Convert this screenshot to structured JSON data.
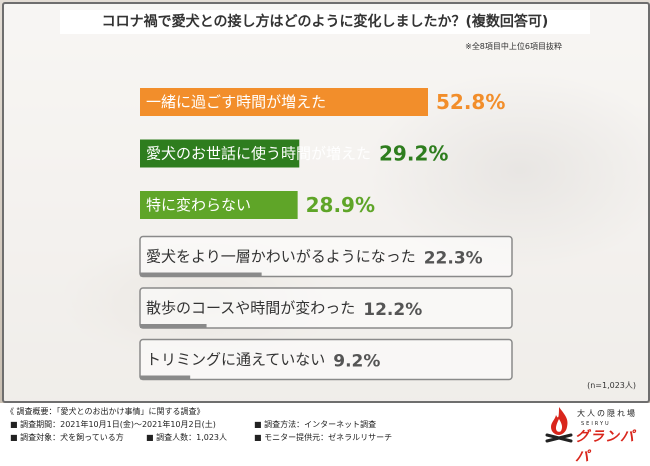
{
  "title": "コロナ禍で愛犬との接し方はどのように変化しましたか？(複数回答可)",
  "note": "※全8項目中上位6項目抜粋",
  "n_label": "(n=1,023人)",
  "colors": {
    "orange": "#f28e2b",
    "dark_green": "#2e7d1e",
    "green": "#5fa528",
    "gray": "#8a8a8a",
    "text_dark": "#333333"
  },
  "chart_data": {
    "type": "bar",
    "orientation": "horizontal",
    "categories": [
      "一緒に過ごす時間が増えた",
      "愛犬のお世話に使う時間が増えた",
      "特に変わらない",
      "愛犬をより一層かわいがるようになった",
      "散歩のコースや時間が変わった",
      "トリミングに通えていない"
    ],
    "values": [
      52.8,
      29.2,
      28.9,
      22.3,
      12.2,
      9.2
    ],
    "value_labels": [
      "52.8%",
      "29.2%",
      "28.9%",
      "22.3%",
      "12.2%",
      "9.2%"
    ],
    "bar_colors": [
      "orange",
      "dark_green",
      "green",
      "gray",
      "gray",
      "gray"
    ],
    "xlim": [
      0,
      55
    ],
    "xlabel": "",
    "ylabel": "",
    "legend": false,
    "grid": false
  },
  "footer": {
    "heading": "《 調査概要：「愛犬とのお出かけ事情」に関する調査》",
    "period": "■ 調査期間：2021年10月1日(金)～2021年10月2日(土)",
    "method": "■ 調査方法：インターネット調査",
    "target": "■ 調査対象：犬を飼っている方",
    "count": "■ 調査人数：1,023人",
    "provider": "■ モニター提供元：ゼネラルリサーチ"
  },
  "logo": {
    "tagline": "大人の隠れ場",
    "sub": "SEIRYU",
    "name": "グランパパ",
    "icon": "campfire-icon"
  }
}
